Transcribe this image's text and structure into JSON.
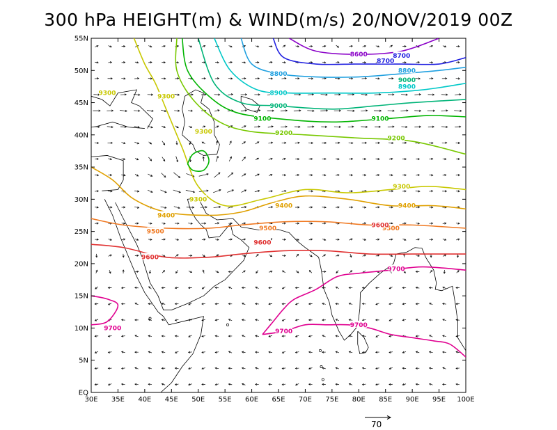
{
  "title": "300 hPa HEIGHT(m) & WIND(m/s) 20/NOV/2019 00Z",
  "chart_data": {
    "type": "map",
    "projection": "lat-lon",
    "lon_range": [
      30,
      100
    ],
    "lat_range": [
      0,
      55
    ],
    "x_ticks": [
      "30E",
      "35E",
      "40E",
      "45E",
      "50E",
      "55E",
      "60E",
      "65E",
      "70E",
      "75E",
      "80E",
      "85E",
      "90E",
      "95E",
      "100E"
    ],
    "y_ticks": [
      "EQ",
      "5N",
      "10N",
      "15N",
      "20N",
      "25N",
      "30N",
      "35N",
      "40N",
      "45N",
      "50N",
      "55N"
    ],
    "reference_vector": {
      "label": "70",
      "value": 70,
      "units": "m/s"
    },
    "contours": [
      {
        "level": 8600,
        "color": "#8a00c8",
        "points": [
          [
            67,
            55
          ],
          [
            72,
            53
          ],
          [
            80,
            52.5
          ],
          [
            88,
            53
          ],
          [
            95,
            55
          ]
        ],
        "labels": [
          [
            80,
            52.5
          ]
        ]
      },
      {
        "level": 8700,
        "color": "#2020e0",
        "points": [
          [
            64,
            55
          ],
          [
            66,
            52
          ],
          [
            72,
            51
          ],
          [
            80,
            51
          ],
          [
            88,
            51
          ],
          [
            95,
            51
          ],
          [
            100,
            52
          ]
        ],
        "labels": [
          [
            85,
            51.5
          ],
          [
            88,
            52.3
          ]
        ]
      },
      {
        "level": 8800,
        "color": "#20a0e0",
        "points": [
          [
            58,
            55
          ],
          [
            60,
            51
          ],
          [
            65,
            49.5
          ],
          [
            72,
            49
          ],
          [
            80,
            49
          ],
          [
            88,
            49.5
          ],
          [
            95,
            50
          ],
          [
            100,
            50.5
          ]
        ],
        "labels": [
          [
            65,
            49.5
          ],
          [
            89,
            50
          ]
        ]
      },
      {
        "level": 8900,
        "color": "#00c8c8",
        "points": [
          [
            53,
            55
          ],
          [
            56,
            50
          ],
          [
            61,
            47
          ],
          [
            67,
            46.5
          ],
          [
            75,
            46.5
          ],
          [
            83,
            46.5
          ],
          [
            92,
            47
          ],
          [
            100,
            48
          ]
        ],
        "labels": [
          [
            65,
            46.5
          ],
          [
            89,
            47.5
          ]
        ]
      },
      {
        "level": 9000,
        "color": "#00b478",
        "points": [
          [
            50,
            55
          ],
          [
            53,
            48
          ],
          [
            58,
            45
          ],
          [
            65,
            44.5
          ],
          [
            75,
            44
          ],
          [
            83,
            44.5
          ],
          [
            90,
            45
          ],
          [
            100,
            45.5
          ]
        ],
        "labels": [
          [
            65,
            44.5
          ],
          [
            89,
            48.5
          ]
        ]
      },
      {
        "level": 9100,
        "color": "#00b400",
        "points": [
          [
            47,
            55
          ],
          [
            48,
            50
          ],
          [
            52,
            46
          ],
          [
            57,
            43.5
          ],
          [
            65,
            42.5
          ],
          [
            75,
            42
          ],
          [
            85,
            42.5
          ],
          [
            93,
            43
          ],
          [
            100,
            42.8
          ]
        ],
        "labels": [
          [
            62,
            42.5
          ],
          [
            84,
            42.5
          ]
        ]
      },
      {
        "level": 9200,
        "color": "#78c800",
        "points": [
          [
            46,
            55
          ],
          [
            46,
            50
          ],
          [
            49,
            45.5
          ],
          [
            54,
            42
          ],
          [
            60,
            40.5
          ],
          [
            70,
            40
          ],
          [
            80,
            39.5
          ],
          [
            90,
            39
          ],
          [
            100,
            37
          ]
        ],
        "labels": [
          [
            66,
            40.3
          ],
          [
            87,
            39.5
          ]
        ]
      },
      {
        "level": 9300,
        "color": "#c8c800",
        "points": [
          [
            38,
            55
          ],
          [
            40,
            51
          ],
          [
            42,
            48
          ],
          [
            44,
            44
          ],
          [
            47,
            38
          ],
          [
            50,
            32
          ],
          [
            55,
            29
          ],
          [
            62,
            30
          ],
          [
            70,
            31.5
          ],
          [
            78,
            31
          ],
          [
            86,
            31.5
          ],
          [
            93,
            32
          ],
          [
            100,
            31.5
          ]
        ],
        "labels": [
          [
            33,
            46.5
          ],
          [
            44,
            46
          ],
          [
            51,
            40.5
          ],
          [
            50,
            30
          ],
          [
            88,
            32
          ]
        ]
      },
      {
        "level": 9400,
        "color": "#e0a000",
        "points": [
          [
            30,
            35
          ],
          [
            34,
            33
          ],
          [
            38,
            30
          ],
          [
            44,
            28
          ],
          [
            52,
            27.5
          ],
          [
            58,
            28
          ],
          [
            64,
            29.5
          ],
          [
            70,
            30.5
          ],
          [
            78,
            30
          ],
          [
            86,
            29
          ],
          [
            94,
            29
          ],
          [
            100,
            28.5
          ]
        ],
        "labels": [
          [
            44,
            27.5
          ],
          [
            66,
            29
          ],
          [
            89,
            29
          ]
        ]
      },
      {
        "level": 9500,
        "color": "#f07820",
        "points": [
          [
            30,
            27
          ],
          [
            36,
            26
          ],
          [
            44,
            25.5
          ],
          [
            52,
            25.5
          ],
          [
            58,
            26
          ],
          [
            66,
            26.5
          ],
          [
            74,
            26.5
          ],
          [
            82,
            26
          ],
          [
            90,
            26
          ],
          [
            100,
            25.5
          ]
        ],
        "labels": [
          [
            42,
            25
          ],
          [
            63,
            25.5
          ],
          [
            86,
            25.5
          ]
        ]
      },
      {
        "level": 9600,
        "color": "#e03030",
        "points": [
          [
            30,
            23
          ],
          [
            36,
            22.5
          ],
          [
            44,
            21
          ],
          [
            52,
            21
          ],
          [
            58,
            21.5
          ],
          [
            66,
            22
          ],
          [
            74,
            22
          ],
          [
            82,
            21.5
          ],
          [
            90,
            21.5
          ],
          [
            96,
            21.5
          ],
          [
            100,
            21.5
          ]
        ],
        "labels": [
          [
            41,
            21
          ],
          [
            62,
            23.3
          ],
          [
            84,
            26
          ]
        ]
      },
      {
        "level": 9700,
        "color": "#e00090",
        "points": [
          [
            30,
            10.5
          ],
          [
            33,
            11
          ],
          [
            35,
            13.5
          ],
          [
            33,
            14.5
          ],
          [
            30,
            15
          ]
        ],
        "labels": [
          [
            34,
            10
          ]
        ]
      },
      {
        "level": 9700,
        "color": "#e00090",
        "points": [
          [
            62,
            9
          ],
          [
            64,
            11
          ],
          [
            66,
            13
          ],
          [
            68,
            14.5
          ],
          [
            72,
            16
          ],
          [
            76,
            18
          ],
          [
            80,
            18.5
          ],
          [
            86,
            19
          ],
          [
            92,
            19.5
          ],
          [
            100,
            19
          ]
        ],
        "labels": [
          [
            87,
            19.2
          ]
        ]
      },
      {
        "level": 9700,
        "color": "#e00090",
        "points": [
          [
            62,
            9
          ],
          [
            66,
            9.5
          ],
          [
            70,
            10.5
          ],
          [
            74,
            10.5
          ],
          [
            78,
            10.5
          ],
          [
            82,
            10
          ],
          [
            86,
            9
          ],
          [
            90,
            8.5
          ],
          [
            94,
            8
          ],
          [
            97,
            7.5
          ],
          [
            100,
            5.5
          ]
        ],
        "labels": [
          [
            66,
            9.5
          ],
          [
            80,
            10.5
          ]
        ]
      },
      {
        "level": 9300,
        "color": "#00b400",
        "points": [
          [
            48,
            35.5
          ],
          [
            49,
            37
          ],
          [
            51,
            37.5
          ],
          [
            52,
            36
          ],
          [
            51,
            34.5
          ],
          [
            49,
            34.5
          ],
          [
            48,
            35.5
          ]
        ],
        "labels": []
      }
    ]
  }
}
